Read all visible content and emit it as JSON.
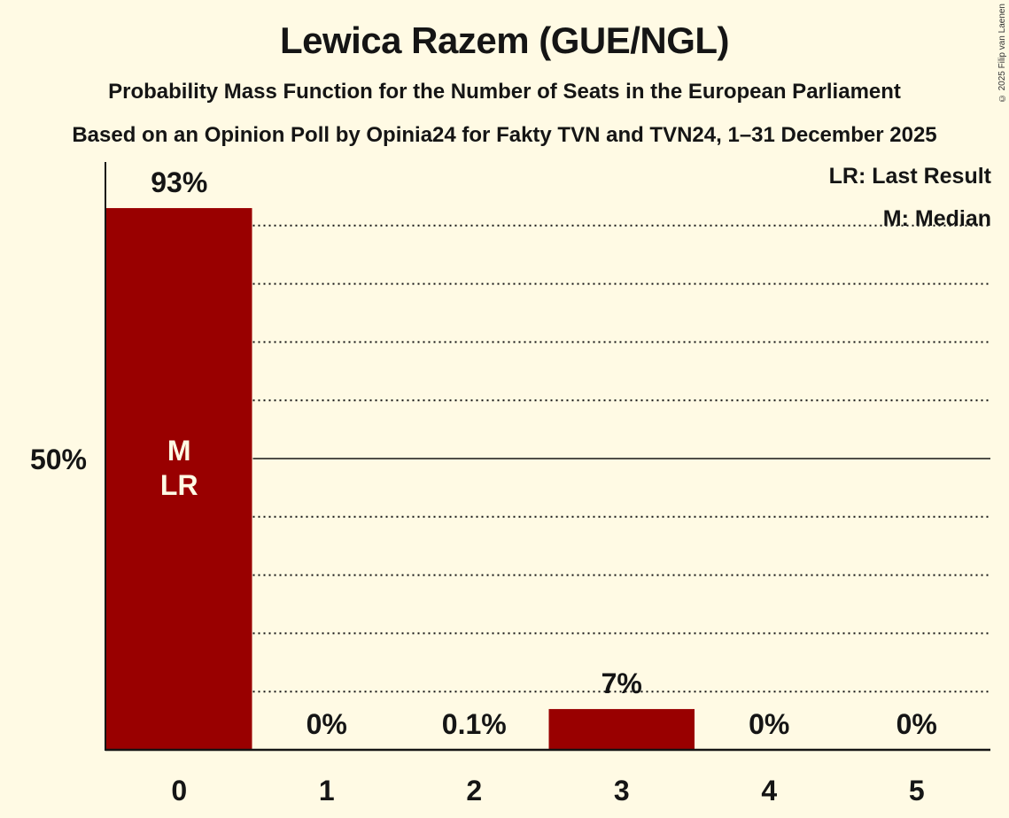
{
  "header": {
    "title": "Lewica Razem (GUE/NGL)",
    "subtitle": "Probability Mass Function for the Number of Seats in the European Parliament",
    "source": "Based on an Opinion Poll by Opinia24 for Fakty TVN and TVN24, 1–31 December 2025",
    "copyright": "© 2025 Filip van Laenen"
  },
  "legend": {
    "lr": "LR: Last Result",
    "m": "M: Median"
  },
  "colors": {
    "background": "#fffae4",
    "bar": "#990000",
    "text": "#151515",
    "bar_label": "#fffae4"
  },
  "chart_data": {
    "type": "bar",
    "title": "Lewica Razem (GUE/NGL)",
    "subtitle": "Probability Mass Function for the Number of Seats in the European Parliament",
    "xlabel": "",
    "ylabel": "",
    "categories": [
      "0",
      "1",
      "2",
      "3",
      "4",
      "5"
    ],
    "values": [
      93,
      0,
      0.1,
      7,
      0,
      0
    ],
    "value_labels": [
      "93%",
      "0%",
      "0.1%",
      "7%",
      "0%",
      "0%"
    ],
    "ylim": [
      0,
      100
    ],
    "yticks": [
      {
        "value": 50,
        "label": "50%"
      }
    ],
    "grid": {
      "on": true,
      "style": "dotted",
      "step": 10,
      "solid_at": 50
    },
    "annotations": [
      {
        "category": "0",
        "text": "M"
      },
      {
        "category": "0",
        "text": "LR"
      }
    ],
    "legend": [
      "LR: Last Result",
      "M: Median"
    ],
    "legend_position": "top-right"
  }
}
